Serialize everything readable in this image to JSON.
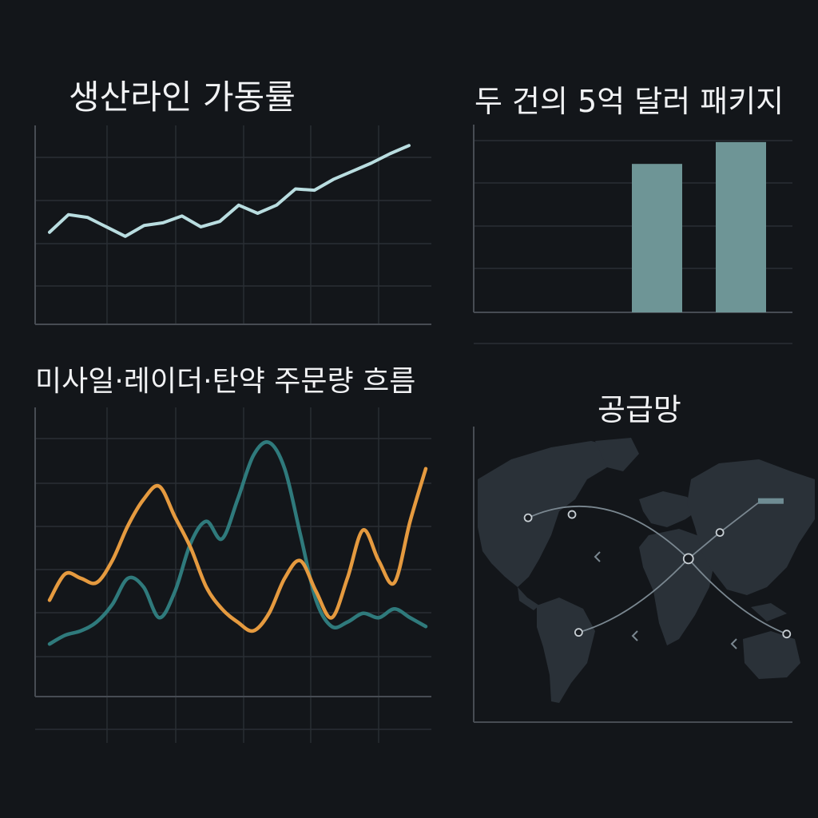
{
  "colors": {
    "background": "#13161a",
    "line_light": "#b9dde0",
    "bar_fill": "#6e9596",
    "series_teal": "#2f7a7c",
    "series_orange": "#e59a3f",
    "map_land": "#2a3138",
    "route": "#7a8790"
  },
  "chart_data": [
    {
      "type": "line",
      "title": "생산라인 가동률",
      "xlabel": "",
      "ylabel": "",
      "grid": true,
      "x": [
        1,
        2,
        3,
        4,
        5,
        6,
        7,
        8,
        9,
        10,
        11,
        12,
        13,
        14,
        15,
        16,
        17,
        18,
        19,
        20
      ],
      "series": [
        {
          "values": [
            42,
            55,
            53,
            46,
            39,
            47,
            49,
            54,
            46,
            50,
            62,
            56,
            62,
            74,
            73,
            81,
            87,
            93,
            100,
            106
          ]
        }
      ]
    },
    {
      "type": "bar",
      "title": "두 건의 5억 달러 패키지",
      "xlabel": "",
      "ylabel": "",
      "grid": true,
      "categories": [
        "",
        ""
      ],
      "values": [
        3.4,
        3.9
      ]
    },
    {
      "type": "line",
      "title": "미사일·레이더·탄약 주문량 흐름",
      "xlabel": "",
      "ylabel": "",
      "grid": true,
      "x": [
        1,
        2,
        3,
        4,
        5,
        6,
        7,
        8,
        9,
        10,
        11,
        12,
        13,
        14,
        15,
        16,
        17,
        18,
        19,
        20,
        21,
        22,
        23,
        24,
        25
      ],
      "series": [
        {
          "values": [
            12,
            14,
            15,
            17,
            21,
            27,
            25,
            18,
            24,
            35,
            40,
            36,
            45,
            55,
            58,
            52,
            37,
            22,
            16,
            17,
            19,
            18,
            20,
            18,
            16
          ]
        },
        {
          "values": [
            22,
            28,
            27,
            26,
            31,
            39,
            45,
            48,
            41,
            34,
            25,
            20,
            17,
            15,
            19,
            27,
            31,
            24,
            18,
            27,
            38,
            31,
            26,
            40,
            52
          ]
        }
      ]
    }
  ],
  "map": {
    "title": "공급망",
    "nodes": [
      {
        "lon": -123,
        "lat": 37
      },
      {
        "lon": -77,
        "lat": 39
      },
      {
        "lon": 45,
        "lat": 12
      },
      {
        "lon": 78,
        "lat": 28
      },
      {
        "lon": 148,
        "lat": -34
      },
      {
        "lon": -70,
        "lat": -33
      }
    ],
    "flag_node": {
      "lon": 118,
      "lat": 46
    }
  }
}
